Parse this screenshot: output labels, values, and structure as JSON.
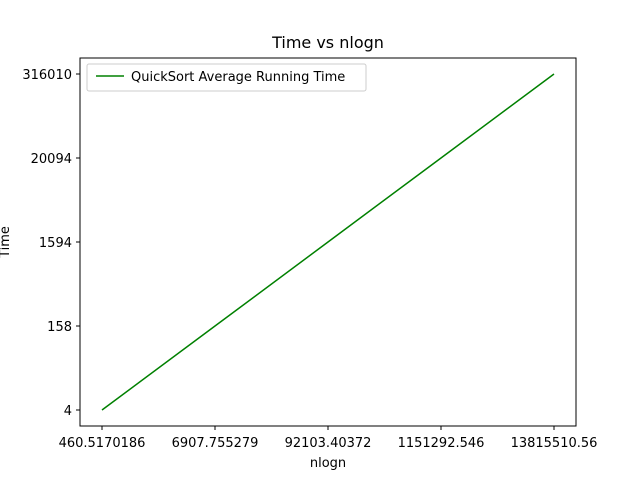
{
  "chart_data": {
    "type": "line",
    "title": "Time vs nlogn",
    "xlabel": "nlogn",
    "ylabel": "Time",
    "x_ticks": [
      "460.5170186",
      "6907.755279",
      "92103.40372",
      "1151292.546",
      "13815510.56"
    ],
    "y_ticks": [
      "4",
      "158",
      "1594",
      "20094",
      "316010"
    ],
    "series": [
      {
        "name": "QuickSort Average Running Time",
        "color": "#008000",
        "x": [
          "460.5170186",
          "6907.755279",
          "92103.40372",
          "1151292.546",
          "13815510.56"
        ],
        "y": [
          4,
          158,
          1594,
          20094,
          316010
        ]
      }
    ],
    "grid": false,
    "legend": "top-left"
  }
}
